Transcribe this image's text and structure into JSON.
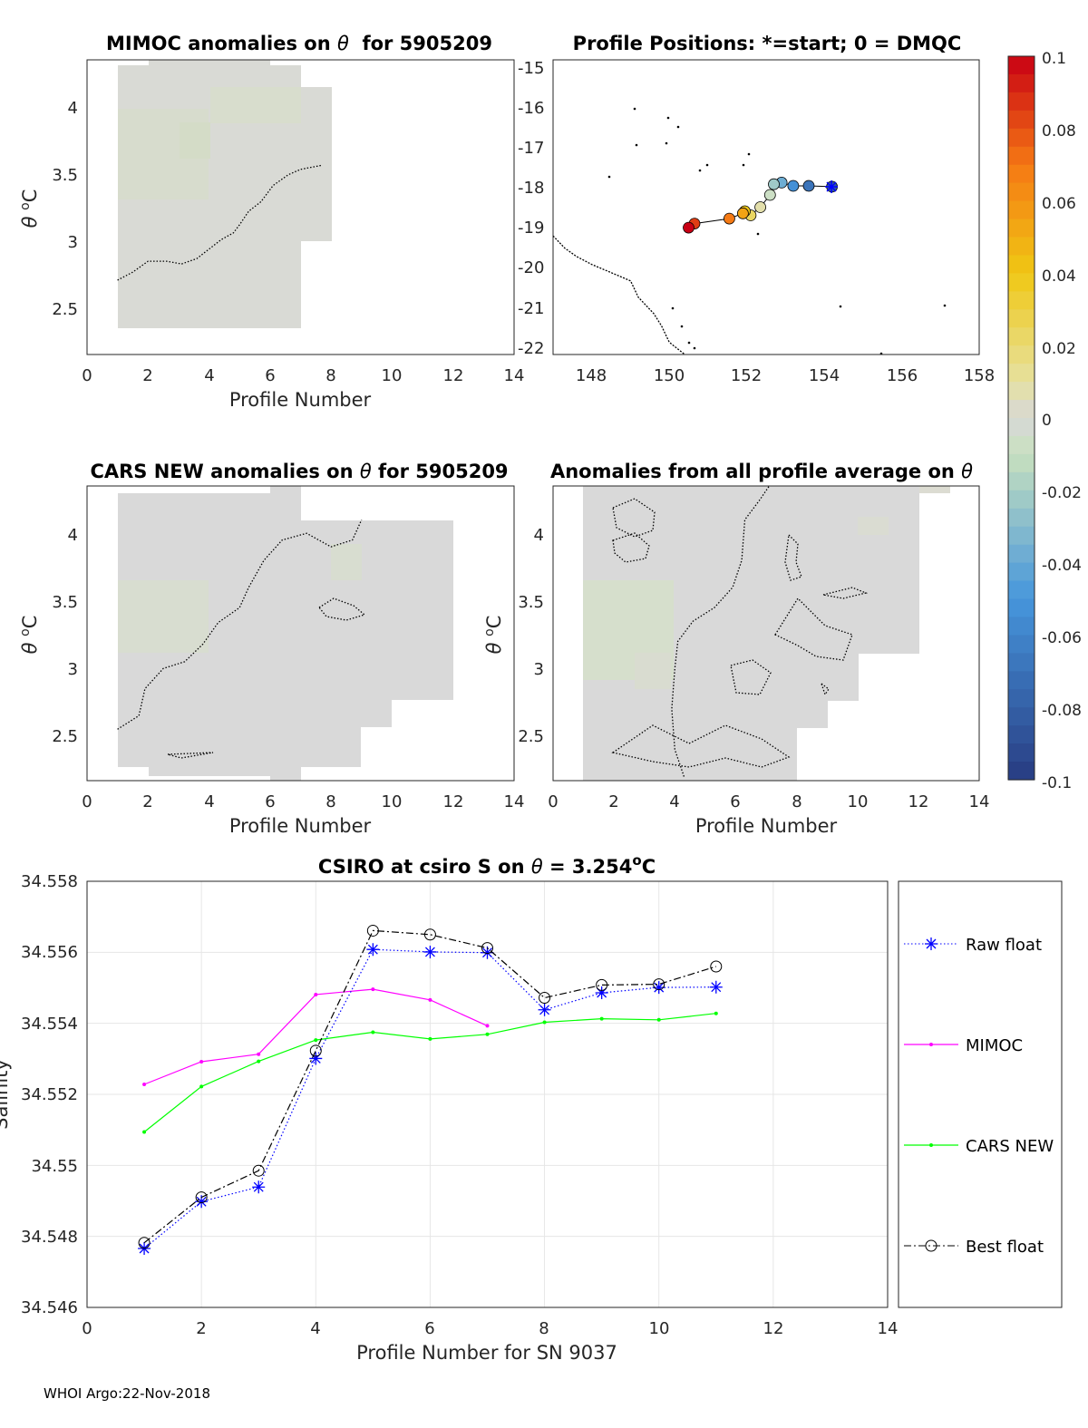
{
  "footer": "WHOI Argo:22-Nov-2018",
  "colors": {
    "raw_float": "#0000ff",
    "mimoc": "#ff00ff",
    "cars_new": "#00ff00",
    "best_float": "#000000",
    "anomaly_fill": "#d9d9d9",
    "anomaly_green": "#d8e2cc",
    "grid": "#e6e6e6"
  },
  "chart_data": [
    {
      "id": "mimoc",
      "type": "heatmap",
      "title_pre": "MIMOC anomalies on ",
      "title_sym": "θ",
      "title_post": "  for 5905209",
      "xlabel": "Profile Number",
      "ylabel_sym": "θ",
      "ylabel_unit": "C",
      "xlim": [
        0,
        14
      ],
      "ylim": [
        2.17,
        4.35
      ],
      "xticks": [
        "0",
        "2",
        "4",
        "6",
        "8",
        "10",
        "12",
        "14"
      ],
      "yticks": [
        "2.5",
        "3",
        "3.5",
        "4"
      ],
      "zero_contour": [
        [
          1,
          2.72
        ],
        [
          1.5,
          2.78
        ],
        [
          2,
          2.86
        ],
        [
          2.6,
          2.86
        ],
        [
          3.1,
          2.84
        ],
        [
          3.6,
          2.88
        ],
        [
          4,
          2.95
        ],
        [
          4.4,
          3.02
        ],
        [
          4.8,
          3.07
        ],
        [
          5,
          3.13
        ],
        [
          5.3,
          3.23
        ],
        [
          5.7,
          3.3
        ],
        [
          5.9,
          3.36
        ],
        [
          6.1,
          3.42
        ],
        [
          6.6,
          3.5
        ],
        [
          7,
          3.54
        ],
        [
          7.7,
          3.57
        ]
      ]
    },
    {
      "id": "positions",
      "type": "scatter",
      "title": "Profile Positions: *=start; 0 = DMQC",
      "xlim": [
        147,
        158
      ],
      "ylim": [
        -22.1,
        -14.9
      ],
      "xticks": [
        "148",
        "150",
        "152",
        "154",
        "156",
        "158"
      ],
      "yticks": [
        "-15",
        "-16",
        "-17",
        "-18",
        "-19",
        "-20",
        "-21",
        "-22"
      ],
      "lon": [
        154.2,
        153.6,
        153.2,
        152.9,
        152.7,
        152.6,
        152.35,
        152.1,
        151.95,
        151.9,
        151.55,
        150.65,
        150.5
      ],
      "lat": [
        -18.0,
        -17.98,
        -17.98,
        -17.9,
        -17.94,
        -18.2,
        -18.5,
        -18.7,
        -18.6,
        -18.65,
        -18.78,
        -18.9,
        -19.0
      ],
      "coast_lon": [
        147,
        147.3,
        147.6,
        148.0,
        148.5,
        149.0,
        149.2,
        149.6,
        149.8,
        150.0,
        150.4
      ],
      "coast_lat": [
        -19.2,
        -19.5,
        -19.7,
        -19.9,
        -20.1,
        -20.3,
        -20.7,
        -21.1,
        -21.4,
        -21.8,
        -22.1
      ]
    },
    {
      "id": "cars",
      "type": "heatmap",
      "title_pre": "CARS NEW anomalies on ",
      "title_sym": "θ",
      "title_post": " for 5905209",
      "xlabel": "Profile Number",
      "ylabel_sym": "θ",
      "ylabel_unit": "C",
      "xlim": [
        0,
        14
      ],
      "ylim": [
        2.17,
        4.35
      ],
      "xticks": [
        "0",
        "2",
        "4",
        "6",
        "8",
        "10",
        "12",
        "14"
      ],
      "yticks": [
        "2.5",
        "3",
        "3.5",
        "4"
      ],
      "zero_contour": [
        [
          1,
          2.55
        ],
        [
          1.7,
          2.65
        ],
        [
          1.9,
          2.85
        ],
        [
          2.5,
          3.0
        ],
        [
          3.2,
          3.05
        ],
        [
          3.8,
          3.18
        ],
        [
          4.3,
          3.34
        ],
        [
          5,
          3.45
        ],
        [
          5.3,
          3.6
        ],
        [
          5.8,
          3.8
        ],
        [
          6.4,
          3.95
        ],
        [
          7.2,
          4.0
        ],
        [
          8.0,
          3.9
        ],
        [
          8.7,
          3.95
        ],
        [
          9,
          4.1
        ]
      ]
    },
    {
      "id": "all_avg",
      "type": "heatmap",
      "title_pre": "Anomalies from all profile average on ",
      "title_sym": "θ",
      "title_post": "",
      "xlabel": "Profile Number",
      "ylabel_sym": "θ",
      "ylabel_unit": "C",
      "xlim": [
        0,
        14
      ],
      "ylim": [
        2.17,
        4.35
      ],
      "xticks": [
        "0",
        "2",
        "4",
        "6",
        "8",
        "10",
        "12",
        "14"
      ],
      "yticks": [
        "2.5",
        "3",
        "3.5",
        "4"
      ],
      "zero_contour": [
        [
          4.3,
          2.2
        ],
        [
          4.0,
          2.4
        ],
        [
          3.9,
          2.7
        ],
        [
          4.0,
          3.0
        ],
        [
          4.1,
          3.2
        ],
        [
          4.6,
          3.35
        ],
        [
          5.3,
          3.45
        ],
        [
          5.9,
          3.6
        ],
        [
          6.2,
          3.8
        ],
        [
          6.3,
          4.1
        ],
        [
          6.8,
          4.25
        ],
        [
          7.1,
          4.35
        ]
      ]
    },
    {
      "id": "salinity",
      "type": "line",
      "title_pre": "CSIRO at csiro S on ",
      "title_sym": "θ",
      "title_post": " = 3.254",
      "title_sup": "o",
      "title_unit": "C",
      "xlabel": "Profile Number for SN 9037",
      "ylabel": "Salinity",
      "xlim": [
        0,
        14
      ],
      "ylim": [
        34.546,
        34.558
      ],
      "xticks": [
        "0",
        "2",
        "4",
        "6",
        "8",
        "10",
        "12",
        "14"
      ],
      "yticks": [
        "34.546",
        "34.548",
        "34.55",
        "34.552",
        "34.554",
        "34.556",
        "34.558"
      ],
      "series": [
        {
          "name": "Raw float",
          "x": [
            1,
            2,
            3,
            4,
            5,
            6,
            7,
            8,
            9,
            10,
            11
          ],
          "values": [
            34.54766,
            34.54898,
            34.54939,
            34.55301,
            34.55608,
            34.55601,
            34.55599,
            34.55438,
            34.55486,
            34.55501,
            34.55502
          ]
        },
        {
          "name": "MIMOC",
          "x": [
            1,
            2,
            3,
            4,
            5,
            6,
            7
          ],
          "values": [
            34.55228,
            34.55292,
            34.55313,
            34.55481,
            34.55496,
            34.55466,
            34.55393
          ]
        },
        {
          "name": "CARS NEW",
          "x": [
            1,
            2,
            3,
            4,
            5,
            6,
            7,
            8,
            9,
            10,
            11
          ],
          "values": [
            34.55094,
            34.55222,
            34.55293,
            34.55353,
            34.55375,
            34.55356,
            34.55369,
            34.55403,
            34.55413,
            34.5541,
            34.55428
          ]
        },
        {
          "name": "Best float",
          "x": [
            1,
            2,
            3,
            4,
            5,
            6,
            7,
            8,
            9,
            10,
            11
          ],
          "values": [
            34.54782,
            34.5491,
            34.54985,
            34.55323,
            34.55661,
            34.5565,
            34.55612,
            34.55472,
            34.55508,
            34.5551,
            34.5556
          ]
        }
      ]
    },
    {
      "id": "colorbar",
      "type": "heatmap",
      "range": [
        -0.1,
        0.1
      ],
      "ticks": [
        "-0.1",
        "-0.08",
        "-0.06",
        "-0.04",
        "-0.02",
        "0",
        "0.02",
        "0.04",
        "0.06",
        "0.08",
        "0.1"
      ]
    }
  ]
}
